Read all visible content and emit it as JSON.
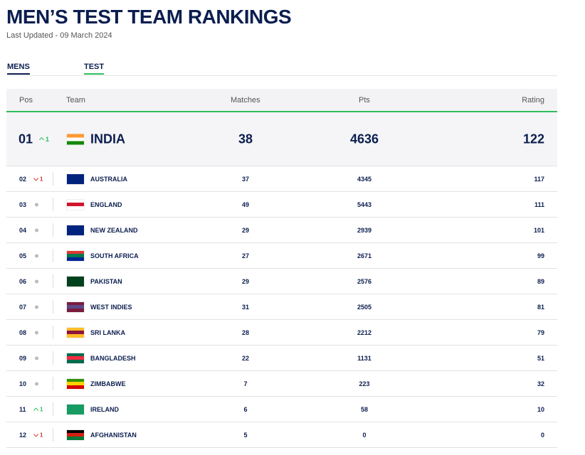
{
  "header": {
    "title": "MEN’S TEST TEAM RANKINGS",
    "subtitle": "Last Updated - 09 March 2024"
  },
  "tabs": [
    {
      "label": "MENS",
      "color": "#0b1e4f"
    },
    {
      "label": "TEST",
      "color": "#2ebd5a"
    }
  ],
  "table": {
    "columns": [
      "Pos",
      "Team",
      "Matches",
      "Pts",
      "Rating"
    ],
    "rows": [
      {
        "pos": "01",
        "trend": "up",
        "change": "1",
        "team": "INDIA",
        "matches": 38,
        "pts": 4636,
        "rating": 122,
        "flag": [
          "#ff9933",
          "#ffffff",
          "#138808"
        ]
      },
      {
        "pos": "02",
        "trend": "down",
        "change": "1",
        "team": "AUSTRALIA",
        "matches": 37,
        "pts": 4345,
        "rating": 117,
        "flag": [
          "#00247d",
          "#00247d",
          "#00247d"
        ]
      },
      {
        "pos": "03",
        "trend": "none",
        "team": "ENGLAND",
        "matches": 49,
        "pts": 5443,
        "rating": 111,
        "flag": [
          "#ffffff",
          "#cf142b",
          "#ffffff"
        ]
      },
      {
        "pos": "04",
        "trend": "none",
        "team": "NEW ZEALAND",
        "matches": 29,
        "pts": 2939,
        "rating": 101,
        "flag": [
          "#00247d",
          "#00247d",
          "#00247d"
        ]
      },
      {
        "pos": "05",
        "trend": "none",
        "team": "SOUTH AFRICA",
        "matches": 27,
        "pts": 2671,
        "rating": 99,
        "flag": [
          "#de3831",
          "#007a4d",
          "#002395"
        ]
      },
      {
        "pos": "06",
        "trend": "none",
        "team": "PAKISTAN",
        "matches": 29,
        "pts": 2576,
        "rating": 89,
        "flag": [
          "#01411c",
          "#01411c",
          "#01411c"
        ]
      },
      {
        "pos": "07",
        "trend": "none",
        "team": "WEST INDIES",
        "matches": 31,
        "pts": 2505,
        "rating": 81,
        "flag": [
          "#7b1c3c",
          "#5a4a8a",
          "#7b1c3c"
        ]
      },
      {
        "pos": "08",
        "trend": "none",
        "team": "SRI LANKA",
        "matches": 28,
        "pts": 2212,
        "rating": 79,
        "flag": [
          "#ffbe29",
          "#8d153a",
          "#ffbe29"
        ]
      },
      {
        "pos": "09",
        "trend": "none",
        "team": "BANGLADESH",
        "matches": 22,
        "pts": 1131,
        "rating": 51,
        "flag": [
          "#006a4e",
          "#f42a41",
          "#006a4e"
        ]
      },
      {
        "pos": "10",
        "trend": "none",
        "team": "ZIMBABWE",
        "matches": 7,
        "pts": 223,
        "rating": 32,
        "flag": [
          "#319208",
          "#ffd200",
          "#d40000"
        ]
      },
      {
        "pos": "11",
        "trend": "up",
        "change": "1",
        "team": "IRELAND",
        "matches": 6,
        "pts": 58,
        "rating": 10,
        "flag": [
          "#169b62",
          "#169b62",
          "#169b62"
        ]
      },
      {
        "pos": "12",
        "trend": "down",
        "change": "1",
        "team": "AFGHANISTAN",
        "matches": 5,
        "pts": 0,
        "rating": 0,
        "flag": [
          "#000000",
          "#d32011",
          "#007a36"
        ]
      }
    ]
  }
}
